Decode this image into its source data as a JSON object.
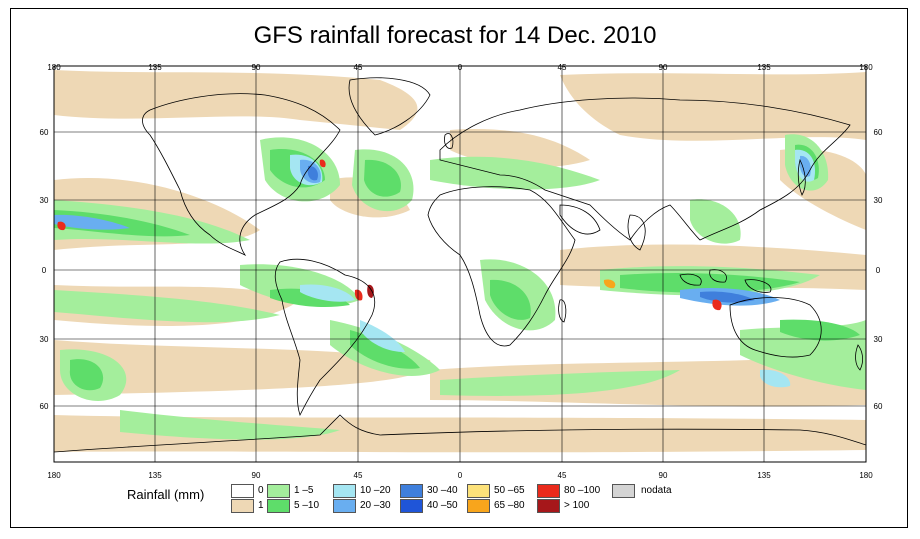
{
  "title": "GFS rainfall forecast for 14 Dec. 2010",
  "longitude_ticks": [
    "180",
    "135",
    "90",
    "45",
    "0",
    "45",
    "90",
    "135",
    "180"
  ],
  "latitude_ticks": [
    "60",
    "30",
    "0",
    "30",
    "60"
  ],
  "legend": {
    "title": "Rainfall (mm)",
    "items": [
      {
        "label": "0",
        "color": "#ffffff"
      },
      {
        "label": "1",
        "color": "#eed8b5"
      },
      {
        "label": "1 –5",
        "color": "#a4ee9c"
      },
      {
        "label": "5 –10",
        "color": "#5edd6a"
      },
      {
        "label": "10 –20",
        "color": "#a5e6f2"
      },
      {
        "label": "20 –30",
        "color": "#69aef0"
      },
      {
        "label": "30 –40",
        "color": "#3f7fdc"
      },
      {
        "label": "40 –50",
        "color": "#1f55d8"
      },
      {
        "label": "50 –65",
        "color": "#fde27a"
      },
      {
        "label": "65 –80",
        "color": "#f8a51c"
      },
      {
        "label": "80 –100",
        "color": "#ea2b1c"
      },
      {
        "label": "> 100",
        "color": "#a6171a"
      },
      {
        "label": "nodata",
        "color": "#d4d4d4"
      }
    ]
  },
  "colors": {
    "land_outline": "#000000",
    "grid": "#000000"
  }
}
